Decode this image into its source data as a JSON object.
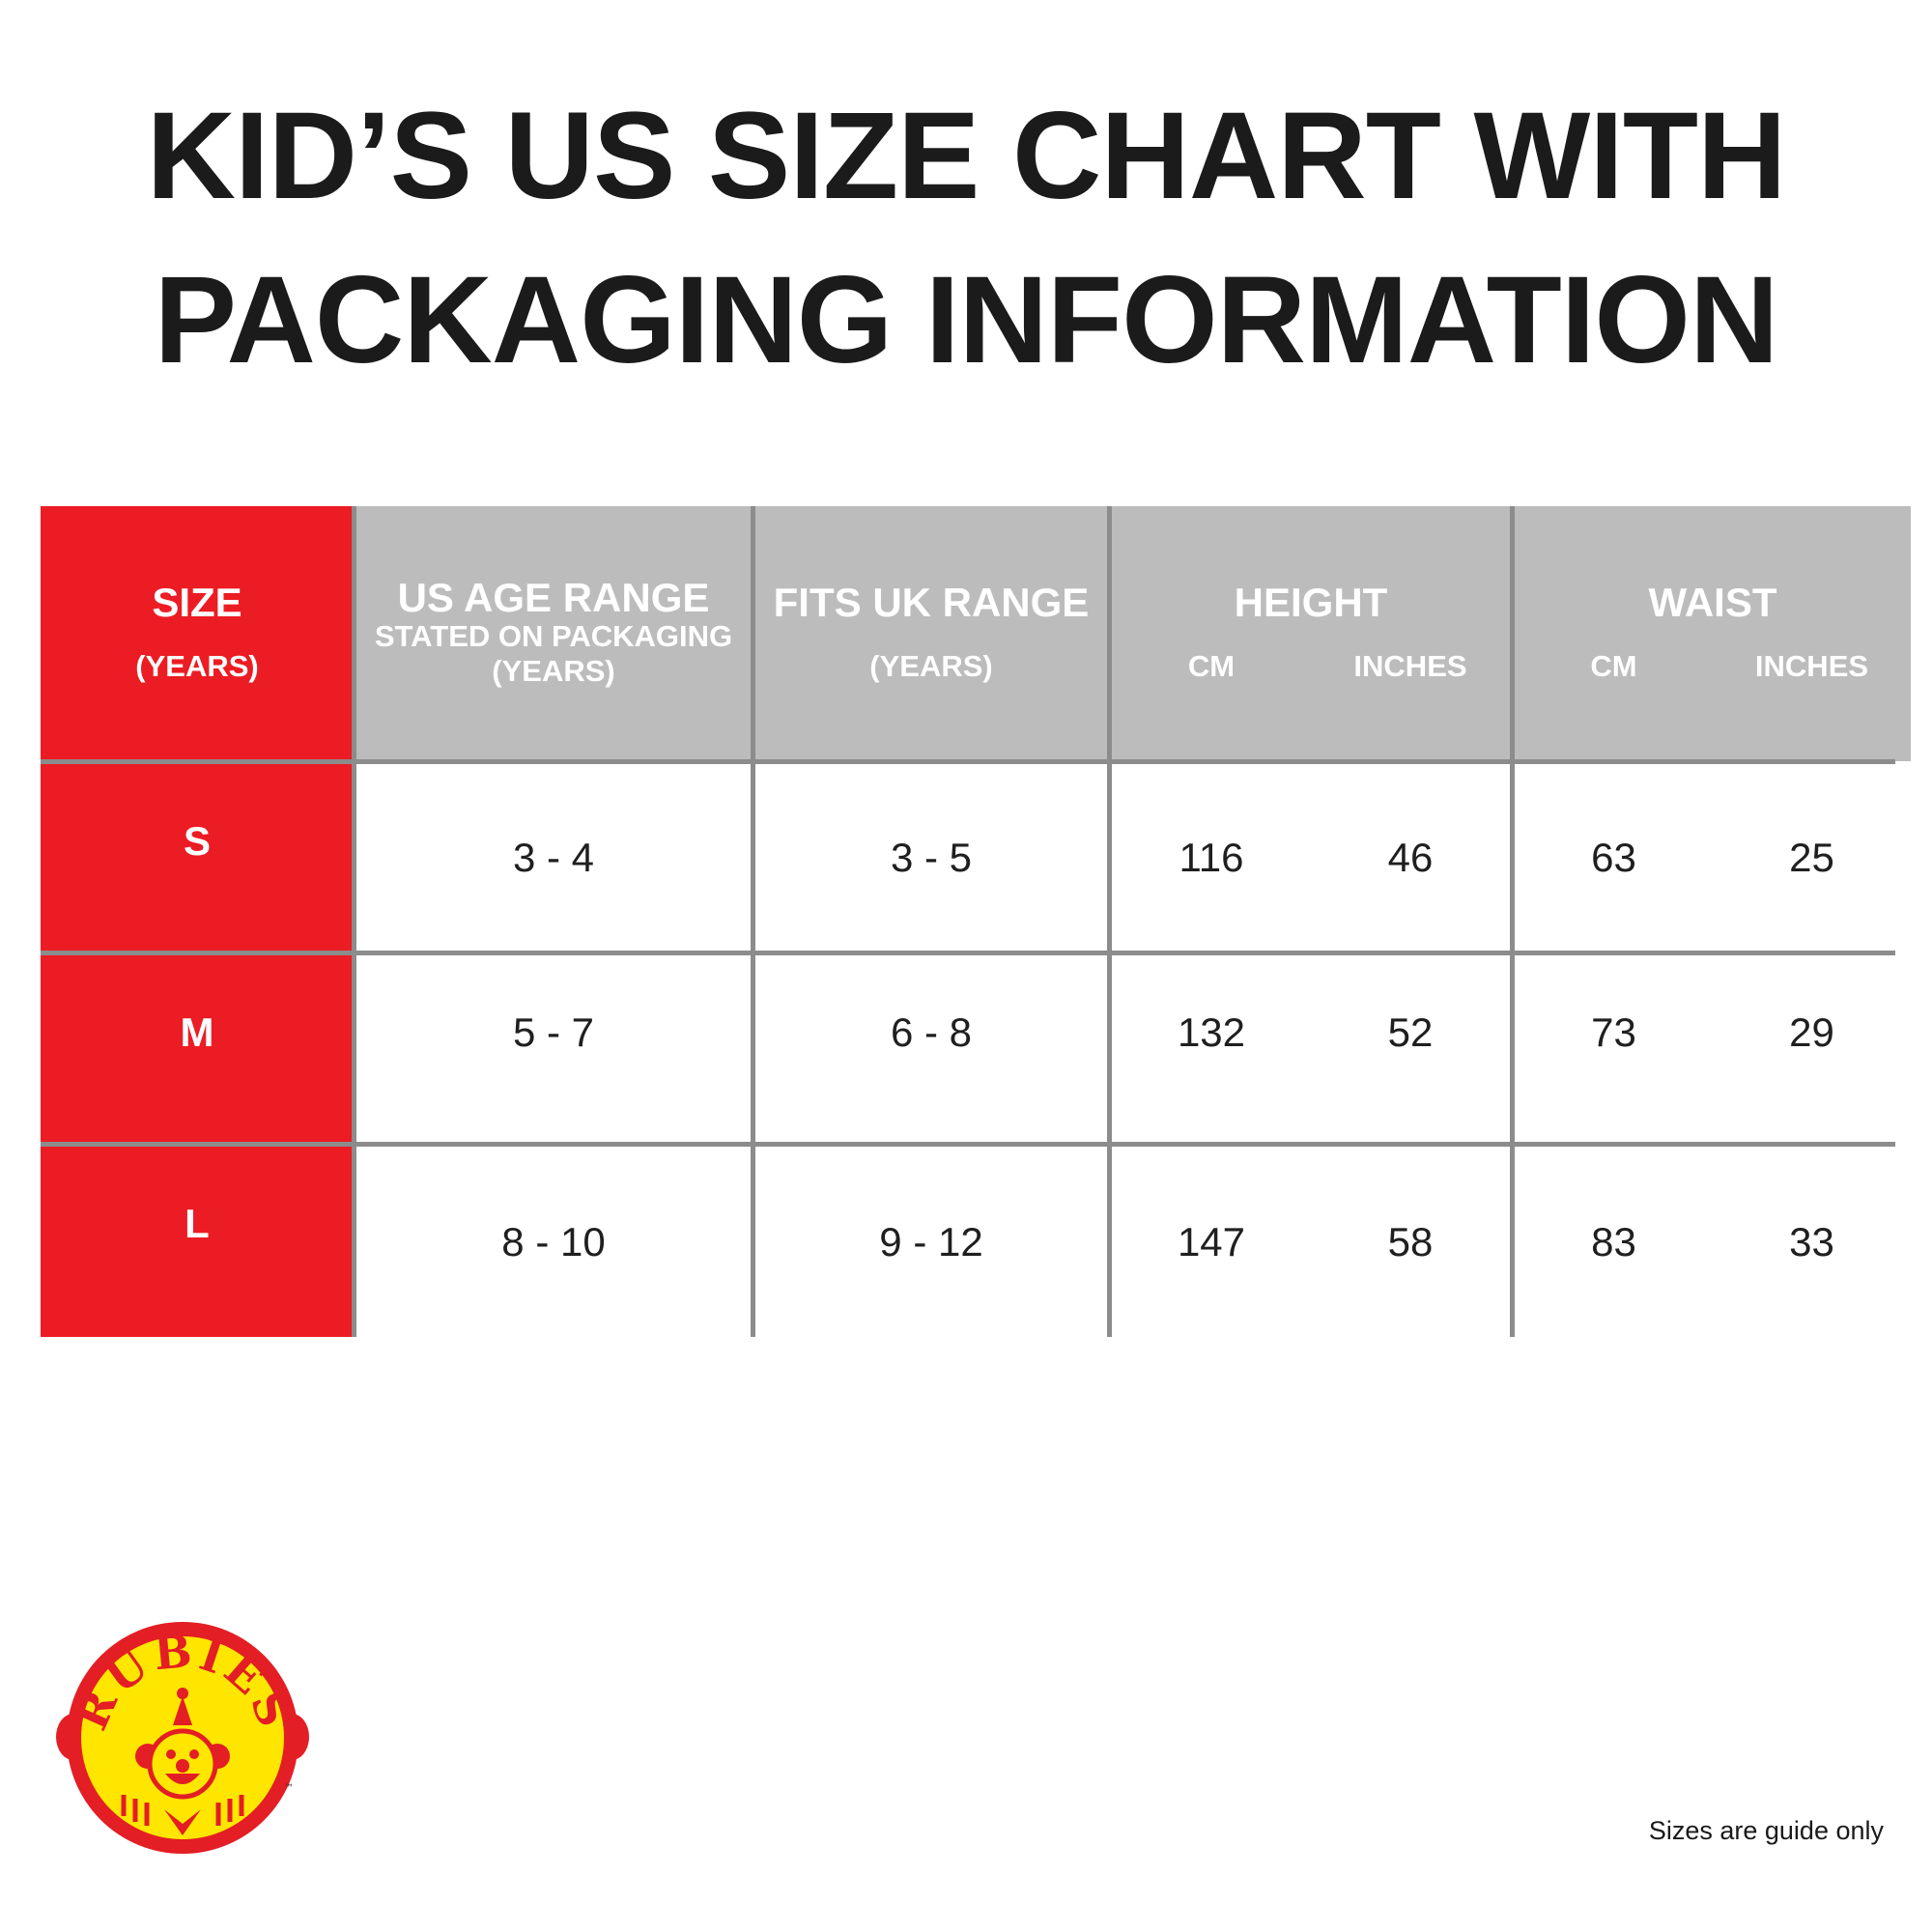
{
  "title": {
    "line1": "KID’S US SIZE CHART WITH",
    "line2": "PACKAGING INFORMATION"
  },
  "table": {
    "headers": {
      "size": {
        "main": "SIZE",
        "sub": "(YEARS)"
      },
      "us_age": {
        "main": "US AGE RANGE",
        "sub1": "STATED ON PACKAGING",
        "sub2": "(YEARS)"
      },
      "uk_range": {
        "main": "FITS UK RANGE",
        "sub": "(YEARS)"
      },
      "height": {
        "main": "HEIGHT",
        "cm": "CM",
        "inches": "INCHES"
      },
      "waist": {
        "main": "WAIST",
        "cm": "CM",
        "inches": "INCHES"
      }
    },
    "rows": [
      {
        "size": "S",
        "us_age": "3 - 4",
        "uk_range": "3 - 5",
        "height_cm": "116",
        "height_in": "46",
        "waist_cm": "63",
        "waist_in": "25"
      },
      {
        "size": "M",
        "us_age": "5 - 7",
        "uk_range": "6 - 8",
        "height_cm": "132",
        "height_in": "52",
        "waist_cm": "73",
        "waist_in": "29"
      },
      {
        "size": "L",
        "us_age": "8 - 10",
        "uk_range": "9 - 12",
        "height_cm": "147",
        "height_in": "58",
        "waist_cm": "83",
        "waist_in": "33"
      }
    ]
  },
  "logo": {
    "text": "RUBIES",
    "mark": "™",
    "icon": "clown-face-icon"
  },
  "footnote": "Sizes are guide only",
  "colors": {
    "size_column": "#ec1c24",
    "header_bg": "#bcbcbc",
    "grid_lines": "#8c8c8c",
    "logo_yellow": "#ffe600",
    "logo_red": "#e31e24"
  }
}
